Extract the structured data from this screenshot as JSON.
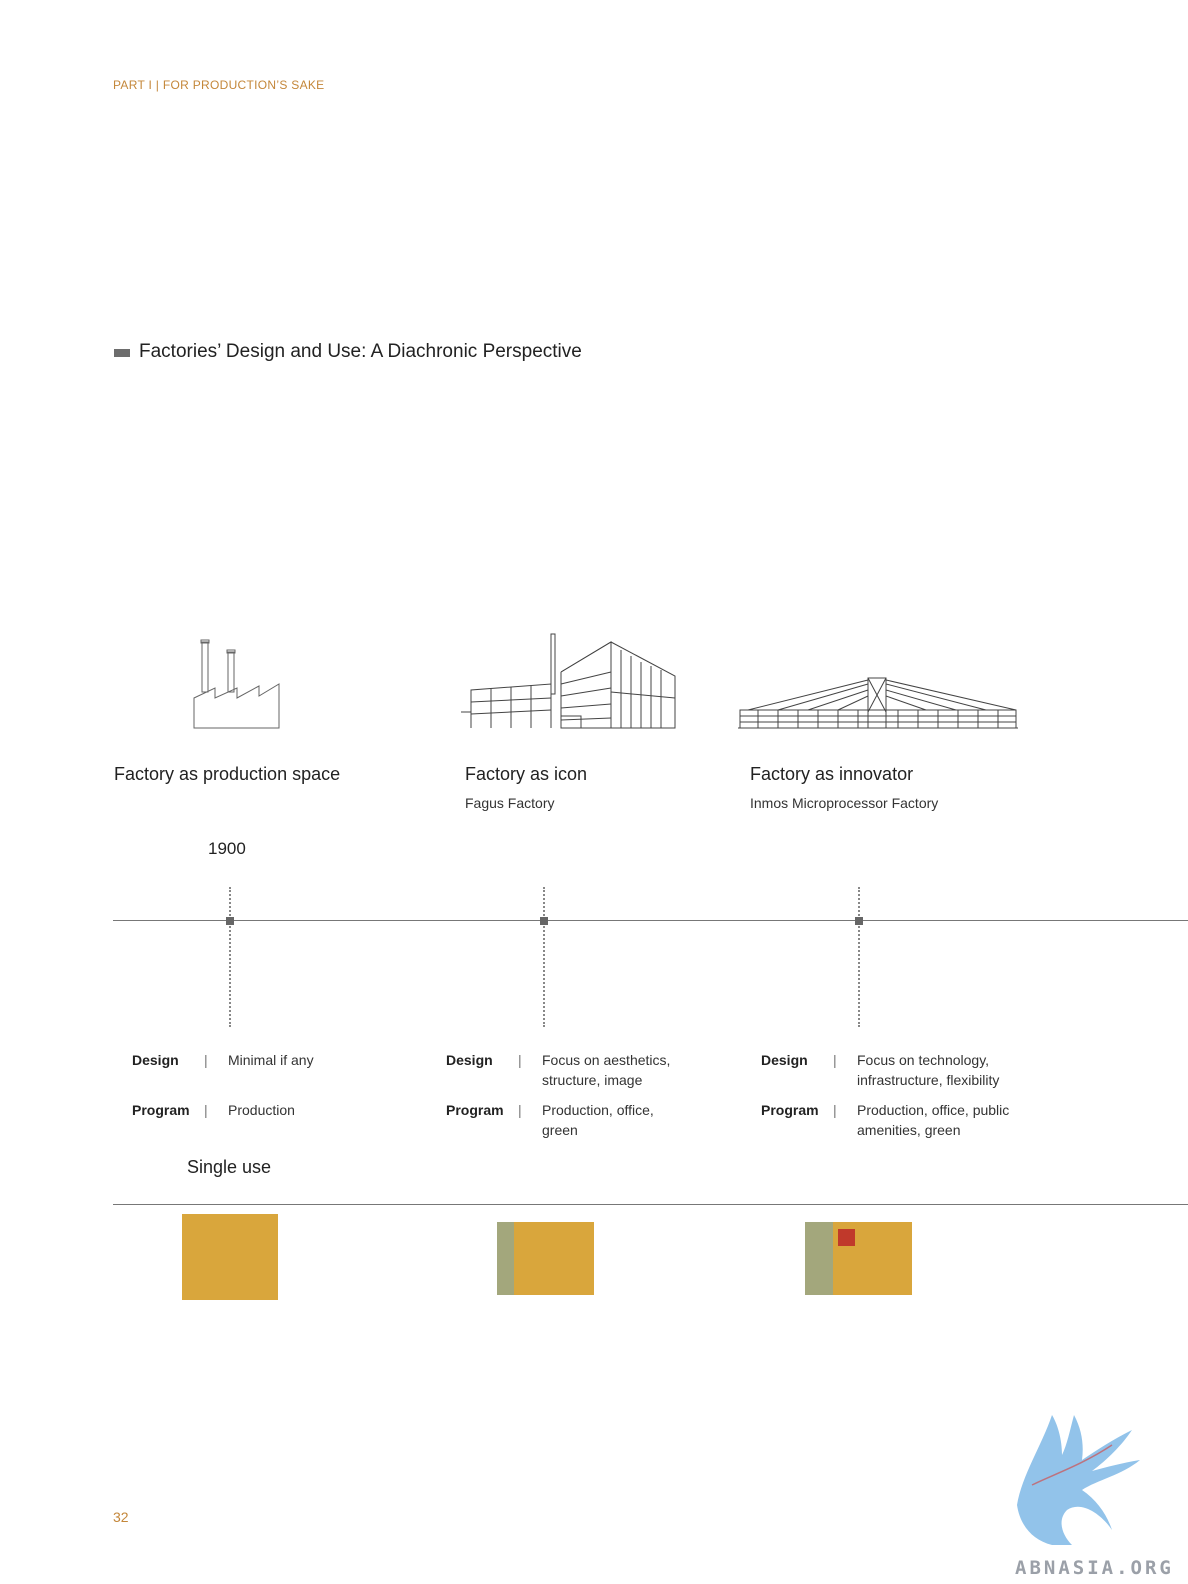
{
  "header": {
    "running_head": "PART I | FOR PRODUCTION’S SAKE"
  },
  "section": {
    "title": "Factories’ Design and Use: A Diachronic Perspective"
  },
  "columns": [
    {
      "title": "Factory as production space",
      "subtitle": "",
      "icon": "smokestack-factory-icon",
      "design_label": "Design",
      "design_value": "Minimal if any",
      "program_label": "Program",
      "program_value": "Production",
      "program_diagram": {
        "segments": [
          "production"
        ]
      }
    },
    {
      "title": "Factory as icon",
      "subtitle": "Fagus Factory",
      "icon": "fagus-factory-icon",
      "design_label": "Design",
      "design_value": "Focus on aesthetics, structure, image",
      "program_label": "Program",
      "program_value": "Production, office, green",
      "program_diagram": {
        "segments": [
          "green",
          "production"
        ]
      }
    },
    {
      "title": "Factory as innovator",
      "subtitle": "Inmos Microprocessor Factory",
      "icon": "inmos-factory-icon",
      "design_label": "Design",
      "design_value": "Focus on technology, infrastructure, flexibility",
      "program_label": "Program",
      "program_value": "Production, office, public amenities, green",
      "program_diagram": {
        "segments": [
          "green",
          "production",
          "public-amenities"
        ]
      }
    }
  ],
  "timeline": {
    "year_label": "1900",
    "separator": "|"
  },
  "program_row": {
    "label": "Single use"
  },
  "colors": {
    "accent": "#c4873a",
    "production": "#d9a63c",
    "green": "#a3a77c",
    "amenities": "#c0392b"
  },
  "footer": {
    "page_number": "32",
    "watermark": "ABNASIA.ORG"
  }
}
